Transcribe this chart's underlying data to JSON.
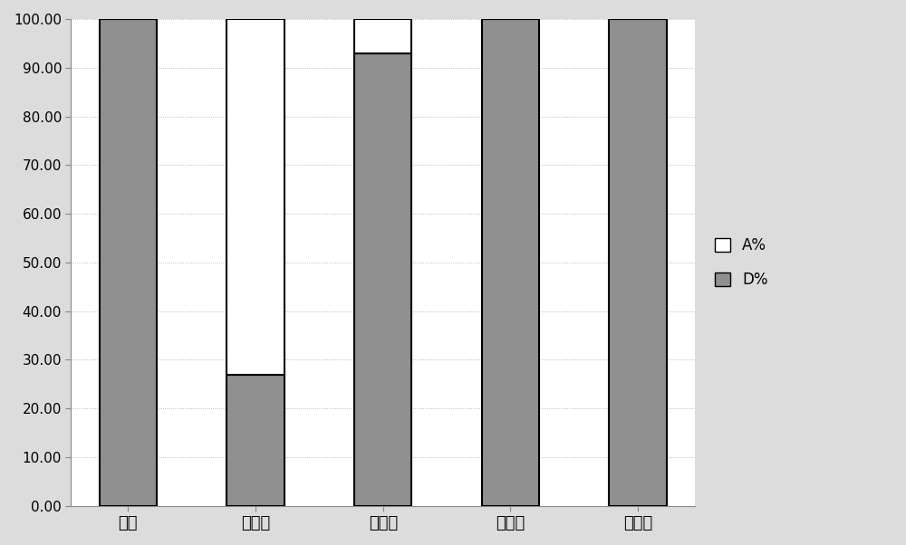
{
  "categories": [
    "香猪",
    "大白猪",
    "萝卜猪",
    "可乐猪",
    "荣昌猪"
  ],
  "D_percent": [
    100,
    26.92,
    92.86,
    100,
    100
  ],
  "A_percent": [
    0,
    73.08,
    7.14,
    0,
    0
  ],
  "D_color": "#909090",
  "A_color": "#ffffff",
  "bar_edge_color": "#000000",
  "bar_width": 0.45,
  "ylim": [
    0,
    100
  ],
  "yticks": [
    0,
    10,
    20,
    30,
    40,
    50,
    60,
    70,
    80,
    90,
    100
  ],
  "ytick_labels": [
    "0.00",
    "10.00",
    "20.00",
    "30.00",
    "40.00",
    "50.00",
    "60.00",
    "70.00",
    "80.00",
    "90.00",
    "100.00"
  ],
  "legend_labels": [
    "A%",
    "D%"
  ],
  "legend_colors": [
    "#ffffff",
    "#909090"
  ],
  "plot_bg_color": "#ffffff",
  "fig_bg_color": "#dcdcdc",
  "figsize": [
    10.0,
    6.02
  ],
  "dpi": 100
}
